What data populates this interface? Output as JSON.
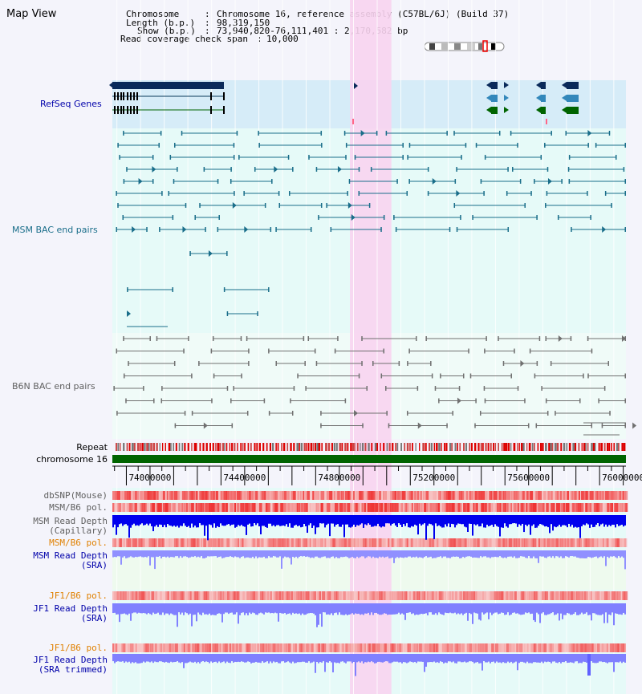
{
  "view_title": "Map View",
  "info": {
    "chromosome_key": "Chromosome",
    "chromosome_value": "Chromosome 16, reference assembly (C57BL/6J) (Build 37)",
    "length_key": "Length (b.p.)",
    "length_value": "98,319,150",
    "show_key": "Show (b.p.)",
    "show_value": "73,940,820-76,111,401 : 2,170,582 bp",
    "coverage_key": "Read coverage check span",
    "coverage_value": "10,000"
  },
  "tracks": {
    "refseq": "RefSeq Genes",
    "msm_bac": "MSM BAC end pairs",
    "b6n_bac": "B6N BAC end pairs",
    "repeat": "Repeat",
    "chromosome": "chromosome 16",
    "dbsnp": "dbSNP(Mouse)",
    "msm_b6_pol_1": "MSM/B6 pol.",
    "msm_depth_cap_1": "MSM Read Depth",
    "msm_depth_cap_2": "(Capillary)",
    "msm_b6_pol_2": "MSM/B6 pol.",
    "msm_depth_sra_1": "MSM Read Depth",
    "msm_depth_sra_2": "(SRA)",
    "jf1_b6_pol_1": "JF1/B6 pol.",
    "jf1_depth_sra_1": "JF1 Read Depth",
    "jf1_depth_sra_2": "(SRA)",
    "jf1_b6_pol_2": "JF1/B6 pol.",
    "jf1_depth_trim_1": "JF1 Read Depth",
    "jf1_depth_trim_2": "(SRA trimmed)"
  },
  "axis": {
    "ticks": [
      "74000000",
      "74400000",
      "74800000",
      "75200000",
      "75600000",
      "76000000"
    ],
    "tick_values": [
      74000000,
      74400000,
      74800000,
      75200000,
      75600000,
      76000000
    ],
    "range_start": 73940820,
    "range_end": 76111401
  },
  "highlight_region": {
    "start": 74945000,
    "end": 75120000
  },
  "colors": {
    "refseq_bg": "#d6ecf8",
    "data_bg": "#e6faf8",
    "highlight": "#f8d4f0",
    "msm_line": "#1a6e8a",
    "b6n_line": "#707070",
    "chromosome": "#006400",
    "refseq_dark": "#0a2a5a",
    "refseq_mid": "#3388bb",
    "refseq_green": "#006400",
    "label_blue": "#0000aa",
    "label_teal": "#1a6e8a",
    "label_gray": "#606060",
    "label_orange": "#e08000",
    "depth_dark": "#0000ee",
    "depth_light": "#8080ff",
    "pol_red": "#ee3333"
  }
}
